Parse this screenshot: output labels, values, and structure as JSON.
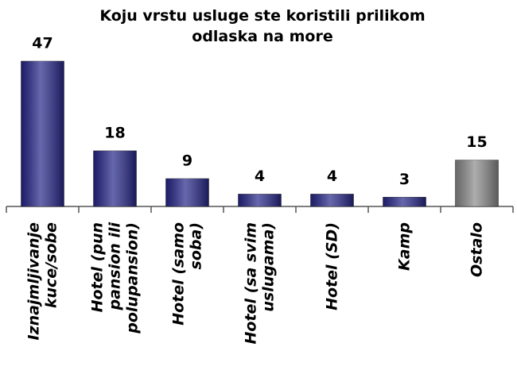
{
  "chart_data": {
    "type": "bar",
    "title": "Koju vrstu usluge ste koristili prilikom\nodlaska na more",
    "categories": [
      "Iznajmljivanje\nkuce/sobe",
      "Hotel (pun\npansion ili\npolupansion)",
      "Hotel (samo\nsoba)",
      "Hotel (sa svim\nuslugama)",
      "Hotel (SD)",
      "Kamp",
      "Ostalo"
    ],
    "values": [
      47,
      18,
      9,
      4,
      4,
      3,
      15
    ],
    "colors": [
      "#26268a",
      "#26268a",
      "#26268a",
      "#26268a",
      "#26268a",
      "#26268a",
      "#8a8a8a"
    ]
  }
}
